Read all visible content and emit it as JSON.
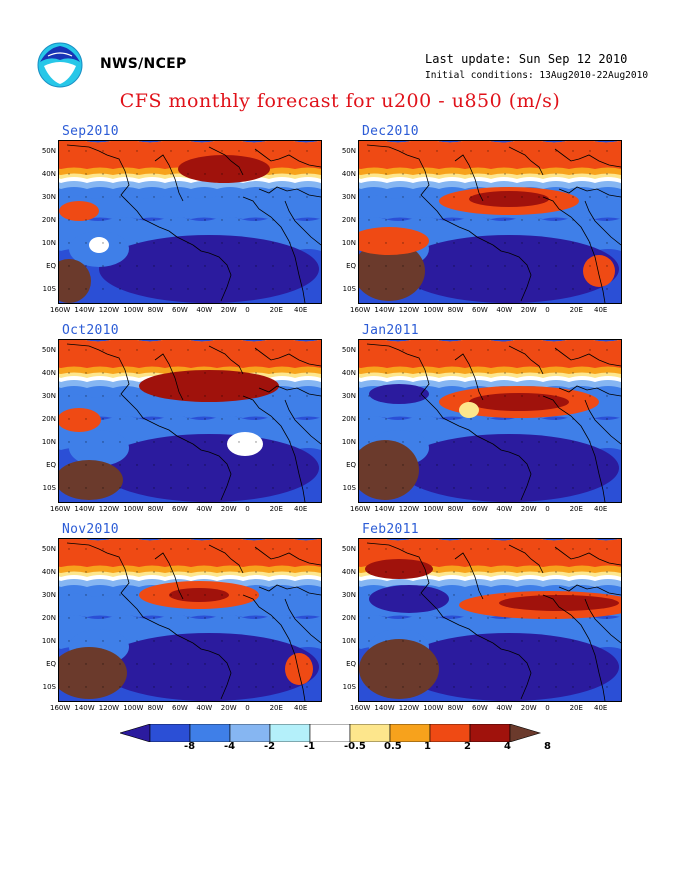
{
  "header": {
    "org": "NWS/NCEP",
    "last_update": "Last update: Sun Sep 12 2010",
    "initial_conditions": "Initial conditions: 13Aug2010-22Aug2010"
  },
  "title": "CFS monthly forecast for u200 - u850 (m/s)",
  "panels": [
    {
      "label": "Sep2010"
    },
    {
      "label": "Dec2010"
    },
    {
      "label": "Oct2010"
    },
    {
      "label": "Jan2011"
    },
    {
      "label": "Nov2010"
    },
    {
      "label": "Feb2011"
    }
  ],
  "axes": {
    "y": [
      "50N",
      "40N",
      "30N",
      "20N",
      "10N",
      "EQ",
      "10S"
    ],
    "x": [
      "160W",
      "140W",
      "120W",
      "100W",
      "80W",
      "60W",
      "40W",
      "20W",
      "0",
      "20E",
      "40E"
    ]
  },
  "colorbar": {
    "labels": [
      "-8",
      "-4",
      "-2",
      "-1",
      "-0.5",
      "0.5",
      "1",
      "2",
      "4",
      "8"
    ],
    "colors": [
      "#2b1b9e",
      "#2b4fd6",
      "#3f7fe8",
      "#86b6f2",
      "#b4f0fa",
      "#ffffff",
      "#fde68c",
      "#f7a21c",
      "#ef4a14",
      "#a0120c",
      "#6b3a2c"
    ]
  },
  "icons": {
    "logo": "noaa-logo-icon"
  }
}
